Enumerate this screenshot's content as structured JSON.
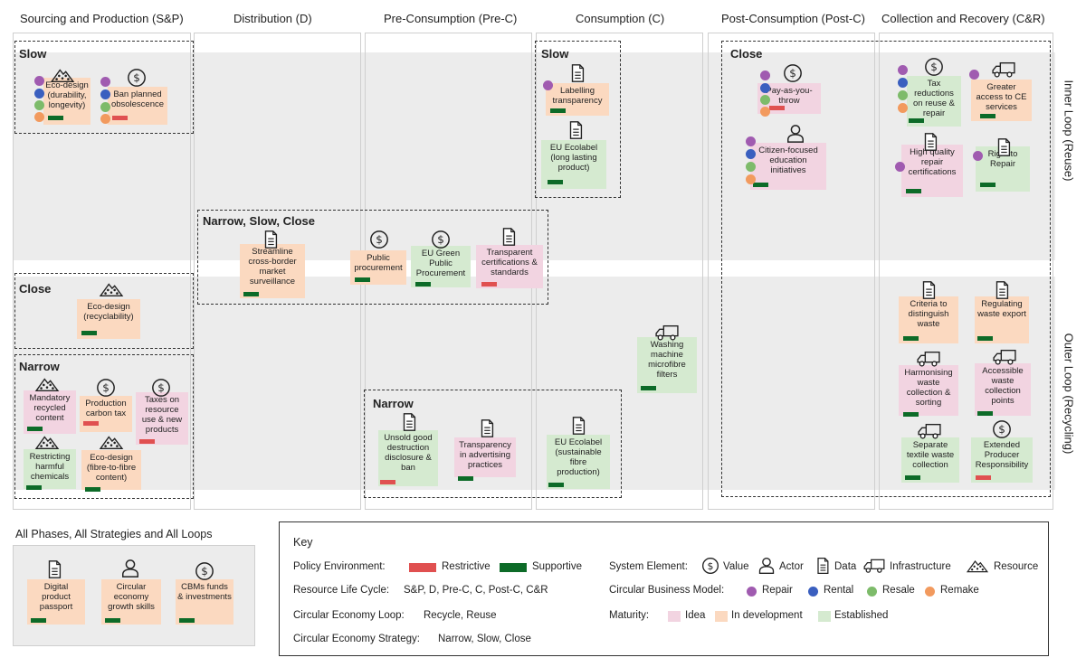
{
  "columns": [
    "Sourcing and Production (S&P)",
    "Distribution (D)",
    "Pre-Consumption (Pre-C)",
    "Consumption (C)",
    "Post-Consumption (Post-C)",
    "Collection and Recovery (C&R)"
  ],
  "loops": {
    "inner": "Inner Loop (Reuse)",
    "outer": "Outer Loop (Recycling)"
  },
  "strategies": {
    "slow": "Slow",
    "close": "Close",
    "narrow": "Narrow",
    "narrow_slow_close": "Narrow, Slow, Close"
  },
  "cards": {
    "eco_durability": "Eco-design (durability, longevity)",
    "ban_obsolescence": "Ban planned obsolescence",
    "labelling": "Labelling transparency",
    "eu_ecolabel_long": "EU Ecolabel (long lasting product)",
    "payt": "Pay-as-you-throw",
    "citizen_edu": "Citizen-focused education initiatives",
    "tax_reductions": "Tax reductions on reuse & repair",
    "greater_access": "Greater access to CE services",
    "hq_repair": "High quality repair certifications",
    "right_repair": "Right to Repair",
    "streamline": "Streamline cross-border market surveillance",
    "public_proc": "Public procurement",
    "eu_green_proc": "EU Green Public Procurement",
    "transparent_cert": "Transparent certifications & standards",
    "eco_recyclability": "Eco-design (recyclability)",
    "washing": "Washing machine microfibre filters",
    "criteria_waste": "Criteria to distinguish waste",
    "regulating_export": "Regulating waste export",
    "mandatory_recycled": "Mandatory recycled content",
    "production_tax": "Production carbon tax",
    "taxes_resource": "Taxes on resource use & new products",
    "restricting_chem": "Restricting harmful chemicals",
    "eco_fibre": "Eco-design (fibre-to-fibre content)",
    "unsold": "Unsold good destruction disclosure & ban",
    "transparency_adv": "Transparency in advertising practices",
    "eu_ecolabel_fibre": "EU Ecolabel (sustainable fibre production)",
    "harmonising": "Harmonising waste collection & sorting",
    "accessible_points": "Accessible waste collection points",
    "separate_textile": "Separate textile waste collection",
    "epr": "Extended Producer Responsibility",
    "digital_passport": "Digital product passport",
    "ce_skills": "Circular economy growth skills",
    "cbm_funds": "CBMs funds & investments"
  },
  "all_phases": {
    "title": "All Phases, All Strategies and All Loops"
  },
  "key": {
    "title": "Key",
    "policy_env": "Policy Environment:",
    "restrictive": "Restrictive",
    "supportive": "Supportive",
    "life_cycle_label": "Resource Life Cycle:",
    "life_cycle_values": "S&P,  D,  Pre-C,  C,  Post-C,  C&R",
    "ce_loop_label": "Circular Economy Loop:",
    "ce_loop_values": "Recycle,  Reuse",
    "ce_strategy_label": "Circular Economy Strategy:",
    "ce_strategy_values": "Narrow, Slow, Close",
    "system_element": "System Element:",
    "value": "Value",
    "actor": "Actor",
    "data": "Data",
    "infrastructure": "Infrastructure",
    "resource": "Resource",
    "cbm_label": "Circular Business Model:",
    "repair": "Repair",
    "rental": "Rental",
    "resale": "Resale",
    "remake": "Remake",
    "maturity_label": "Maturity:",
    "idea": "Idea",
    "in_development": "In development",
    "established": "Established"
  },
  "colors": {
    "supportive": "#0d6b28",
    "restrictive": "#e05050",
    "idea": "#f2d4e1",
    "in_development": "#fbd9c0",
    "established": "#d5ead0",
    "repair": "#a05bb0",
    "rental": "#3a5fbf",
    "resale": "#7dbb6a",
    "remake": "#f29a5e"
  }
}
